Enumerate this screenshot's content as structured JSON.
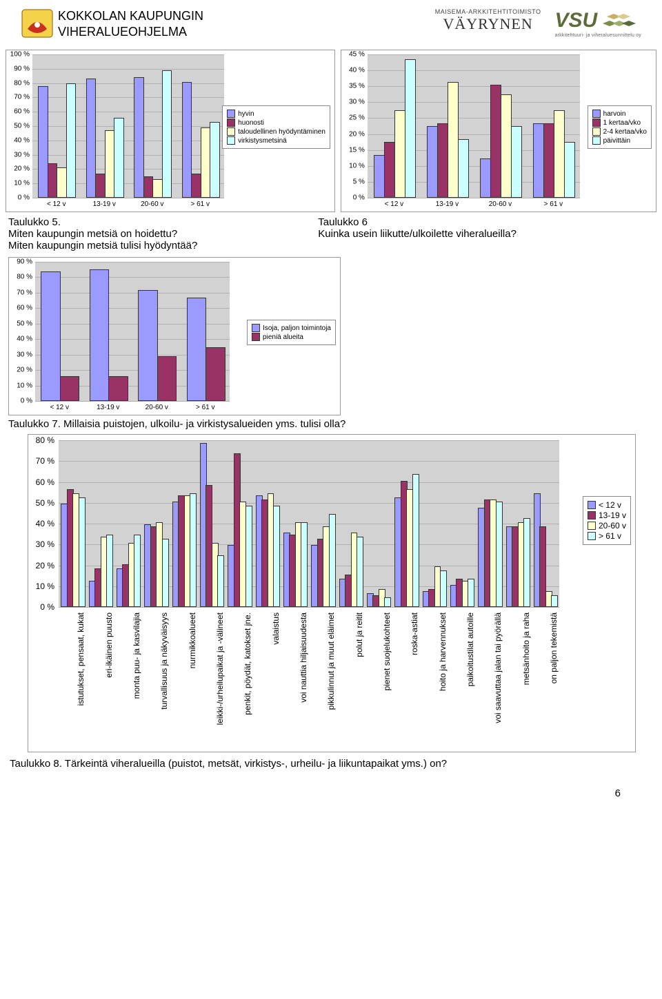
{
  "header": {
    "line1": "KOKKOLAN KAUPUNGIN",
    "line2": "VIHERALUEOHJELMA",
    "vayrynen_small": "MAISEMA-ARKKITEHTITOIMISTO",
    "vayrynen_big": "VÄYRYNEN",
    "vsu": "VSU",
    "vsu_sub": "arkkitehtuuri- ja viheraluesunnittelu oy"
  },
  "colors": {
    "bar_blue": "#9b9bff",
    "bar_maroon": "#993366",
    "bar_cream": "#ffffcc",
    "bar_cyan": "#ccffff",
    "plot_bg": "#d2d2d2",
    "grid": "#b0b0b0",
    "axis_text": "#000000"
  },
  "chart5": {
    "type": "bar",
    "ylim": [
      0,
      100
    ],
    "ytick_step": 10,
    "y_suffix": " %",
    "categories": [
      "< 12 v",
      "13-19 v",
      "20-60 v",
      ">  61 v"
    ],
    "series": [
      {
        "name": "hyvin",
        "color": "#9b9bff",
        "values": [
          77,
          82,
          83,
          80
        ]
      },
      {
        "name": "huonosti",
        "color": "#993366",
        "values": [
          23,
          16,
          14,
          16
        ]
      },
      {
        "name": "taloudellinen hyödyntäminen",
        "color": "#ffffcc",
        "values": [
          20,
          46,
          12,
          48
        ]
      },
      {
        "name": "virkistysmetsinä",
        "color": "#ccffff",
        "values": [
          79,
          55,
          88,
          52
        ]
      }
    ]
  },
  "caption5": {
    "title": "Taulukko 5.",
    "l1": "Miten kaupungin metsiä on hoidettu?",
    "l2": "Miten kaupungin metsiä tulisi hyödyntää?"
  },
  "chart6": {
    "type": "bar",
    "ylim": [
      0,
      45
    ],
    "ytick_step": 5,
    "y_suffix": " %",
    "categories": [
      "< 12 v",
      "13-19 v",
      "20-60 v",
      ">  61 v"
    ],
    "series": [
      {
        "name": "harvoin",
        "color": "#9b9bff",
        "values": [
          13,
          22,
          12,
          23
        ]
      },
      {
        "name": "1 kertaa/vko",
        "color": "#993366",
        "values": [
          17,
          23,
          35,
          23
        ]
      },
      {
        "name": "2-4 kertaa/vko",
        "color": "#ffffcc",
        "values": [
          27,
          36,
          32,
          27
        ]
      },
      {
        "name": "päivittäin",
        "color": "#ccffff",
        "values": [
          43,
          18,
          22,
          17
        ]
      }
    ]
  },
  "caption6": {
    "title": "Taulukko 6",
    "l1": "Kuinka usein liikutte/ulkoilette viheralueilla?"
  },
  "chart7": {
    "type": "bar",
    "ylim": [
      0,
      90
    ],
    "ytick_step": 10,
    "y_suffix": " %",
    "categories": [
      "< 12 v",
      "13-19 v",
      "20-60 v",
      ">  61 v"
    ],
    "series": [
      {
        "name": "Isoja, paljon toimintoja",
        "color": "#9b9bff",
        "values": [
          83,
          84,
          71,
          66
        ]
      },
      {
        "name": "pieniä alueita",
        "color": "#993366",
        "values": [
          15,
          15,
          28,
          34
        ]
      }
    ]
  },
  "caption7": "Taulukko 7. Millaisia puistojen, ulkoilu- ja virkistysalueiden yms. tulisi olla?",
  "chart8": {
    "type": "bar",
    "ylim": [
      0,
      80
    ],
    "ytick_step": 10,
    "y_suffix": " %",
    "legend": [
      "< 12 v",
      "13-19 v",
      "20-60 v",
      "> 61 v"
    ],
    "legend_colors": [
      "#9b9bff",
      "#993366",
      "#ffffcc",
      "#ccffff"
    ],
    "categories": [
      "istutukset, pensaat, kukat",
      "eri-ikäinen puusto",
      "monta puu- ja kasvilajia",
      "turvallisuus ja näkyväisyys",
      "nurmikkoalueet",
      "leikki-/urheilupaikat ja -välineet",
      "penkit, pöydät, katokset jne.",
      "valaistus",
      "voi nauttia hiljaisuudesta",
      "pikkulinnut ja muut eläimet",
      "polut ja reitit",
      "pienet suojelukohteet",
      "roska-astiat",
      "hoito ja harvennukset",
      "paikoitustilat autoille",
      "voi saavuttaa jalan tai pyörällä",
      "metsänhoito ja raha",
      "on paljon tekemistä"
    ],
    "values": [
      [
        49,
        56,
        54,
        52
      ],
      [
        12,
        18,
        33,
        34
      ],
      [
        18,
        20,
        30,
        34
      ],
      [
        39,
        38,
        40,
        32
      ],
      [
        50,
        53,
        53,
        54
      ],
      [
        78,
        58,
        30,
        24
      ],
      [
        29,
        73,
        50,
        48
      ],
      [
        53,
        51,
        54,
        48
      ],
      [
        35,
        34,
        40,
        40
      ],
      [
        29,
        32,
        38,
        44
      ],
      [
        13,
        15,
        35,
        33
      ],
      [
        6,
        5,
        8,
        4
      ],
      [
        52,
        60,
        56,
        63
      ],
      [
        7,
        8,
        19,
        17
      ],
      [
        10,
        13,
        12,
        13
      ],
      [
        47,
        51,
        51,
        50
      ],
      [
        38,
        38,
        40,
        42
      ],
      [
        54,
        38,
        7,
        5
      ]
    ]
  },
  "caption8": "Taulukko 8. Tärkeintä viheralueilla (puistot, metsät, virkistys-, urheilu- ja liikuntapaikat yms.) on?",
  "page": "6"
}
